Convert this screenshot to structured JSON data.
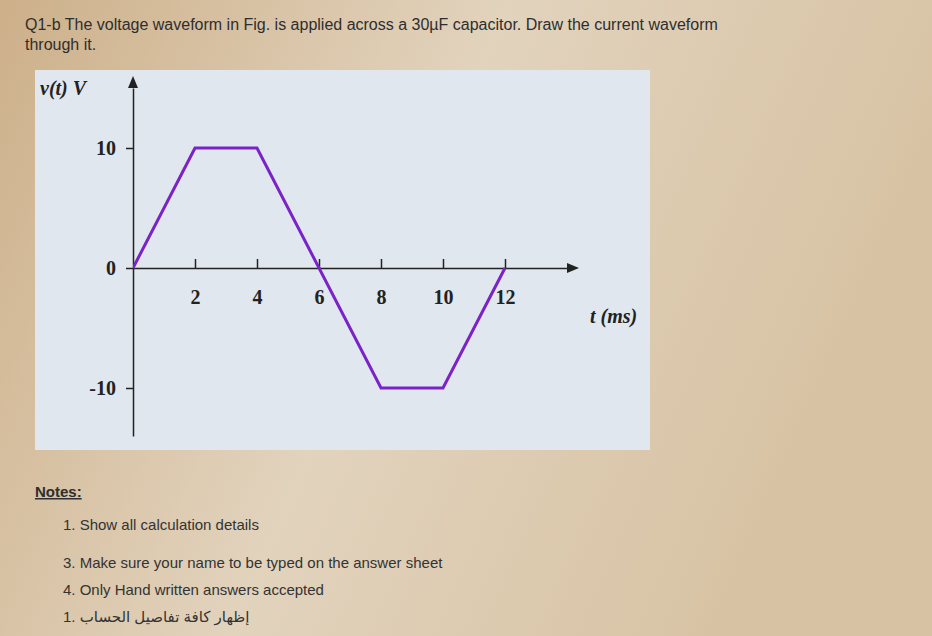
{
  "question": {
    "lines": [
      "Q1-b The voltage waveform in Fig. is applied across a 30µF capacitor. Draw the current waveform",
      "through it."
    ]
  },
  "chart_data": {
    "type": "line",
    "y_label": "v(t) V",
    "x_label": "t (ms)",
    "x": [
      0,
      2,
      4,
      8,
      10,
      12
    ],
    "series": [
      {
        "values": [
          0,
          10,
          10,
          -10,
          -10,
          0
        ],
        "color": "#7b22c9",
        "line_style": "solid"
      }
    ],
    "xlim": [
      0,
      14
    ],
    "ylim": [
      -14,
      15
    ],
    "xticks": [
      2,
      4,
      6,
      8,
      10,
      12
    ],
    "yticks": [
      -10,
      0,
      10
    ],
    "grid": false
  },
  "notes": {
    "title": "Notes:",
    "items": [
      "1. Show all calculation details",
      "3. Make sure your name to be typed on the answer sheet",
      "4. Only Hand written answers accepted",
      "1. إظهار كافة تفاصيل الحساب"
    ]
  }
}
